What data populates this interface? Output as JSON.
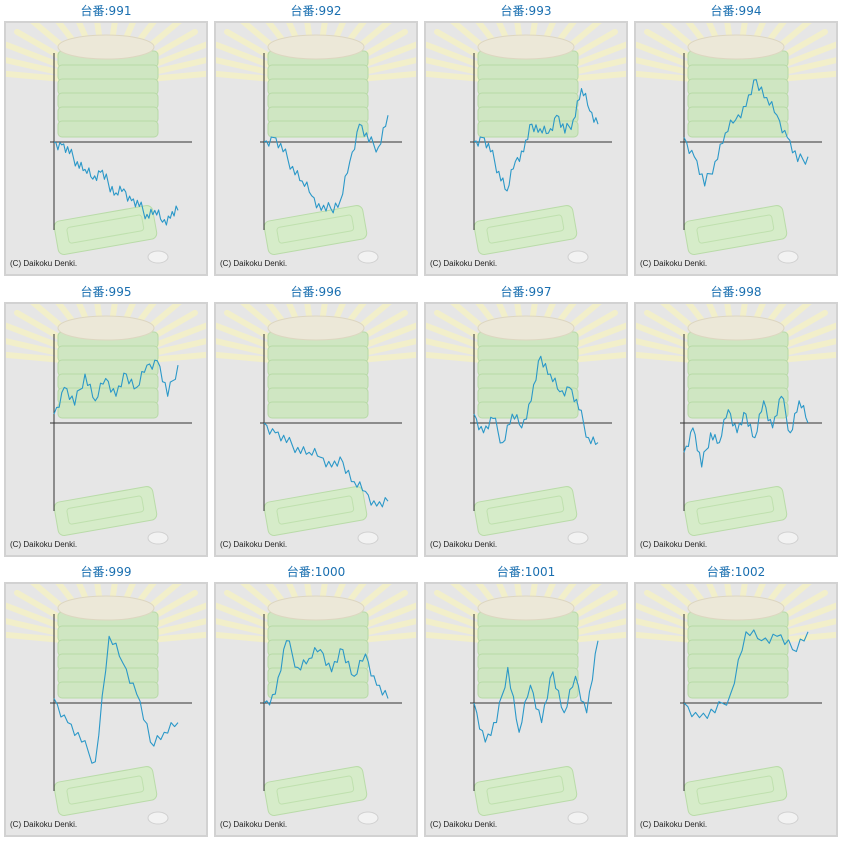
{
  "colors": {
    "title": "#1a6fb0",
    "line": "#2b98c8",
    "axis": "#333333",
    "panel_bg": "#e6e6e6"
  },
  "panels": [
    {
      "title": "台番:991",
      "copyright": "(C) Daikoku Denki."
    },
    {
      "title": "台番:992",
      "copyright": "(C) Daikoku Denki."
    },
    {
      "title": "台番:993",
      "copyright": "(C) Daikoku Denki."
    },
    {
      "title": "台番:994",
      "copyright": "(C) Daikoku Denki."
    },
    {
      "title": "台番:995",
      "copyright": "(C) Daikoku Denki."
    },
    {
      "title": "台番:996",
      "copyright": "(C) Daikoku Denki."
    },
    {
      "title": "台番:997",
      "copyright": "(C) Daikoku Denki."
    },
    {
      "title": "台番:998",
      "copyright": "(C) Daikoku Denki."
    },
    {
      "title": "台番:999",
      "copyright": "(C) Daikoku Denki."
    },
    {
      "title": "台番:1000",
      "copyright": "(C) Daikoku Denki."
    },
    {
      "title": "台番:1001",
      "copyright": "(C) Daikoku Denki."
    },
    {
      "title": "台番:1002",
      "copyright": "(C) Daikoku Denki."
    }
  ],
  "chart_data": [
    {
      "type": "line",
      "ylim": [
        -90,
        100
      ],
      "values": [
        0,
        -3,
        -12,
        -20,
        -28,
        -38,
        -31,
        -42,
        -52,
        -48,
        -60,
        -66,
        -74,
        -70,
        -82,
        -78,
        -70
      ]
    },
    {
      "type": "line",
      "ylim": [
        -90,
        100
      ],
      "values": [
        0,
        5,
        -10,
        -25,
        -40,
        -55,
        -70,
        -68,
        -60,
        -20,
        20,
        0,
        -5,
        30
      ]
    },
    {
      "type": "line",
      "ylim": [
        -90,
        100
      ],
      "values": [
        0,
        5,
        -10,
        -30,
        -50,
        -20,
        -10,
        20,
        15,
        10,
        30,
        10,
        25,
        60,
        35,
        20
      ]
    },
    {
      "type": "line",
      "ylim": [
        -90,
        100
      ],
      "values": [
        5,
        -15,
        -45,
        -20,
        10,
        25,
        40,
        70,
        50,
        30,
        5,
        -20,
        -15
      ]
    },
    {
      "type": "line",
      "ylim": [
        -90,
        100
      ],
      "values": [
        10,
        40,
        20,
        55,
        25,
        50,
        30,
        55,
        40,
        65,
        70,
        30,
        65
      ]
    },
    {
      "type": "line",
      "ylim": [
        -90,
        100
      ],
      "values": [
        0,
        -10,
        -20,
        -25,
        -30,
        -35,
        -45,
        -40,
        -60,
        -70,
        -85,
        -80
      ]
    },
    {
      "type": "line",
      "ylim": [
        -90,
        100
      ],
      "values": [
        10,
        -10,
        5,
        -20,
        10,
        -5,
        25,
        75,
        55,
        35,
        40,
        15,
        -15,
        -20
      ]
    },
    {
      "type": "line",
      "ylim": [
        -90,
        100
      ],
      "values": [
        -30,
        -5,
        -45,
        -10,
        -20,
        15,
        -10,
        10,
        -15,
        25,
        -5,
        30,
        -10,
        25,
        0
      ]
    },
    {
      "type": "line",
      "ylim": [
        -90,
        100
      ],
      "values": [
        5,
        -20,
        -40,
        -60,
        75,
        45,
        10,
        -40,
        -30,
        -20
      ]
    },
    {
      "type": "line",
      "ylim": [
        -90,
        100
      ],
      "values": [
        0,
        10,
        70,
        40,
        50,
        60,
        35,
        60,
        30,
        55,
        20,
        5
      ]
    },
    {
      "type": "line",
      "ylim": [
        -90,
        100
      ],
      "values": [
        0,
        -40,
        -20,
        40,
        -30,
        20,
        -20,
        35,
        -10,
        30,
        -10,
        70
      ]
    },
    {
      "type": "line",
      "ylim": [
        -90,
        100
      ],
      "values": [
        0,
        -15,
        -10,
        10,
        80,
        70,
        75,
        60,
        80
      ]
    }
  ]
}
